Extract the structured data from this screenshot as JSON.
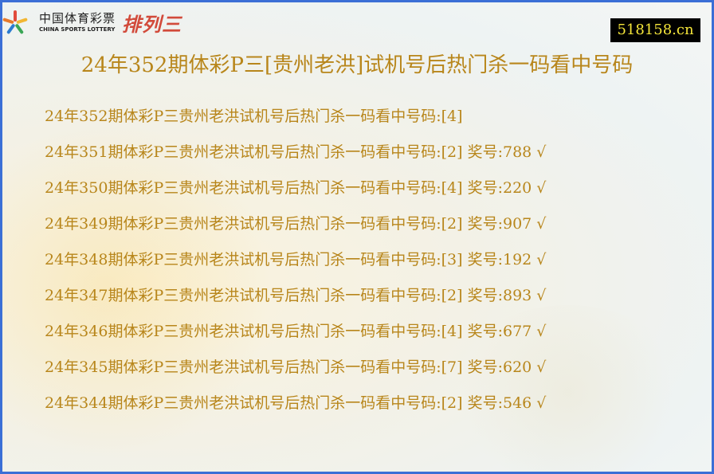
{
  "logo": {
    "cn": "中国体育彩票",
    "en": "CHINA SPORTS LOTTERY",
    "game": "排列三"
  },
  "site": "518158.cn",
  "title": "24年352期体彩P三[贵州老洪]试机号后热门杀一码看中号码",
  "colors": {
    "text": "#b8861b",
    "border": "#3b6fd6"
  },
  "rows": [
    {
      "text": "24年352期体彩P三贵州老洪试机号后热门杀一码看中号码:[4]"
    },
    {
      "text": "24年351期体彩P三贵州老洪试机号后热门杀一码看中号码:[2] 奖号:788 √"
    },
    {
      "text": "24年350期体彩P三贵州老洪试机号后热门杀一码看中号码:[4] 奖号:220 √"
    },
    {
      "text": "24年349期体彩P三贵州老洪试机号后热门杀一码看中号码:[2] 奖号:907 √"
    },
    {
      "text": "24年348期体彩P三贵州老洪试机号后热门杀一码看中号码:[3] 奖号:192 √"
    },
    {
      "text": "24年347期体彩P三贵州老洪试机号后热门杀一码看中号码:[2] 奖号:893 √"
    },
    {
      "text": "24年346期体彩P三贵州老洪试机号后热门杀一码看中号码:[4] 奖号:677 √"
    },
    {
      "text": "24年345期体彩P三贵州老洪试机号后热门杀一码看中号码:[7] 奖号:620 √"
    },
    {
      "text": "24年344期体彩P三贵州老洪试机号后热门杀一码看中号码:[2] 奖号:546 √"
    }
  ]
}
